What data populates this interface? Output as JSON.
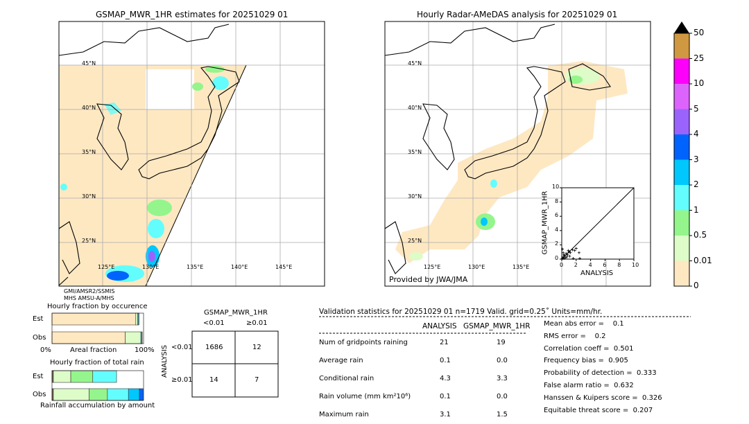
{
  "left_map": {
    "title": "GSMAP_MWR_1HR estimates for 20251029 01",
    "lat_labels": [
      "45°N",
      "40°N",
      "35°N",
      "30°N",
      "25°N"
    ],
    "lon_labels": [
      "125°E",
      "130°E",
      "135°E",
      "140°E",
      "145°E"
    ],
    "sensor_labels": [
      "GMI",
      "AMSR2",
      "SSMIS",
      "MHS",
      "AMSU-A/MHS"
    ]
  },
  "right_map": {
    "title": "Hourly Radar-AMeDAS analysis for 20251029 01",
    "lat_labels": [
      "45°N",
      "40°N",
      "35°N",
      "30°N",
      "25°N"
    ],
    "lon_labels": [
      "125°E",
      "130°E",
      "135°E"
    ],
    "credit": "Provided by JWA/JMA"
  },
  "chart_data": [
    {
      "type": "heatmap",
      "name": "colorbar",
      "levels": [
        "0",
        "0.01",
        "0.5",
        "1",
        "2",
        "3",
        "4",
        "5",
        "10",
        "25",
        "50"
      ],
      "colors": [
        "#fee8c2",
        "#ddfcc8",
        "#94f58c",
        "#63fdfd",
        "#00c7fc",
        "#0064fc",
        "#9a64fc",
        "#dc64fc",
        "#fc00fc",
        "#d09840"
      ],
      "extend": "max"
    },
    {
      "type": "scatter",
      "name": "inset-scatter",
      "xlabel": "ANALYSIS",
      "ylabel": "GSMAP_MWR_1HR",
      "xlim": [
        0,
        10
      ],
      "ylim": [
        0,
        10
      ],
      "xticks": [
        "0",
        "2",
        "4",
        "6",
        "8",
        "10"
      ],
      "yticks": [
        "0",
        "2",
        "4",
        "6",
        "8",
        "10"
      ],
      "points": [
        [
          0.1,
          0.1
        ],
        [
          0.2,
          0.3
        ],
        [
          0.3,
          0.1
        ],
        [
          0.4,
          0.5
        ],
        [
          0.5,
          0.2
        ],
        [
          0.6,
          0.8
        ],
        [
          0.8,
          0.6
        ],
        [
          1.0,
          1.0
        ],
        [
          1.2,
          0.9
        ],
        [
          1.5,
          1.3
        ],
        [
          1.8,
          1.2
        ],
        [
          2.0,
          1.5
        ],
        [
          2.4,
          0.9
        ],
        [
          1.1,
          0.4
        ],
        [
          0.9,
          1.2
        ],
        [
          0.2,
          0.9
        ],
        [
          0.1,
          1.4
        ],
        [
          1.6,
          0.1
        ],
        [
          2.5,
          0.1
        ],
        [
          0.7,
          0.3
        ],
        [
          0.3,
          0.6
        ]
      ],
      "diagonal": true
    },
    {
      "type": "bar",
      "name": "hourly-fraction-by-occurence",
      "title": "Hourly fraction by occurence",
      "xlabel": "Areal fraction",
      "xtick_labels": [
        "0%",
        "100%"
      ],
      "categories": [
        "Est",
        "Obs"
      ],
      "stacked_fractions": {
        "Est": [
          0.915,
          0.02,
          0.01,
          0.005
        ],
        "Obs": [
          0.8,
          0.17,
          0.01,
          0.005
        ]
      }
    },
    {
      "type": "bar",
      "name": "hourly-fraction-of-total-rain",
      "title": "Hourly fraction of total rain",
      "xlabel": "Rainfall accumulation by amount",
      "categories": [
        "Est",
        "Obs"
      ],
      "stacked_fractions": {
        "Est": [
          0.015,
          0.19,
          0.24,
          0.26,
          0,
          0
        ],
        "Obs": [
          0.015,
          0.39,
          0.2,
          0.23,
          0.12,
          0.04
        ]
      }
    },
    {
      "type": "table",
      "name": "contingency-table",
      "col_title": "GSMAP_MWR_1HR",
      "row_title": "ANALYSIS",
      "col_labels": [
        "<0.01",
        "≥0.01"
      ],
      "row_labels": [
        "<0.01",
        "≥0.01"
      ],
      "cells": [
        [
          "1686",
          "12"
        ],
        [
          "14",
          "7"
        ]
      ]
    }
  ],
  "stats": {
    "header": "Validation statistics for 20251029 01  n=1719 Valid. grid=0.25˚ Units=mm/hr.",
    "col_analysis": "ANALYSIS",
    "col_gsmap": "GSMAP_MWR_1HR",
    "rows": [
      {
        "label": "Num of gridpoints raining",
        "analysis": "21",
        "gsmap": "19"
      },
      {
        "label": "Average rain",
        "analysis": "0.1",
        "gsmap": "0.0"
      },
      {
        "label": "Conditional rain",
        "analysis": "4.3",
        "gsmap": "3.3"
      },
      {
        "label": "Rain volume (mm km²10⁶)",
        "analysis": "0.1",
        "gsmap": "0.0"
      },
      {
        "label": "Maximum rain",
        "analysis": "3.1",
        "gsmap": "1.5"
      }
    ],
    "scores": [
      "Mean abs error =    0.1",
      "RMS error =    0.2",
      "Correlation coeff =  0.501",
      "Frequency bias =  0.905",
      "Probability of detection =  0.333",
      "False alarm ratio =  0.632",
      "Hanssen & Kuipers score =  0.326",
      "Equitable threat score =  0.207"
    ]
  }
}
